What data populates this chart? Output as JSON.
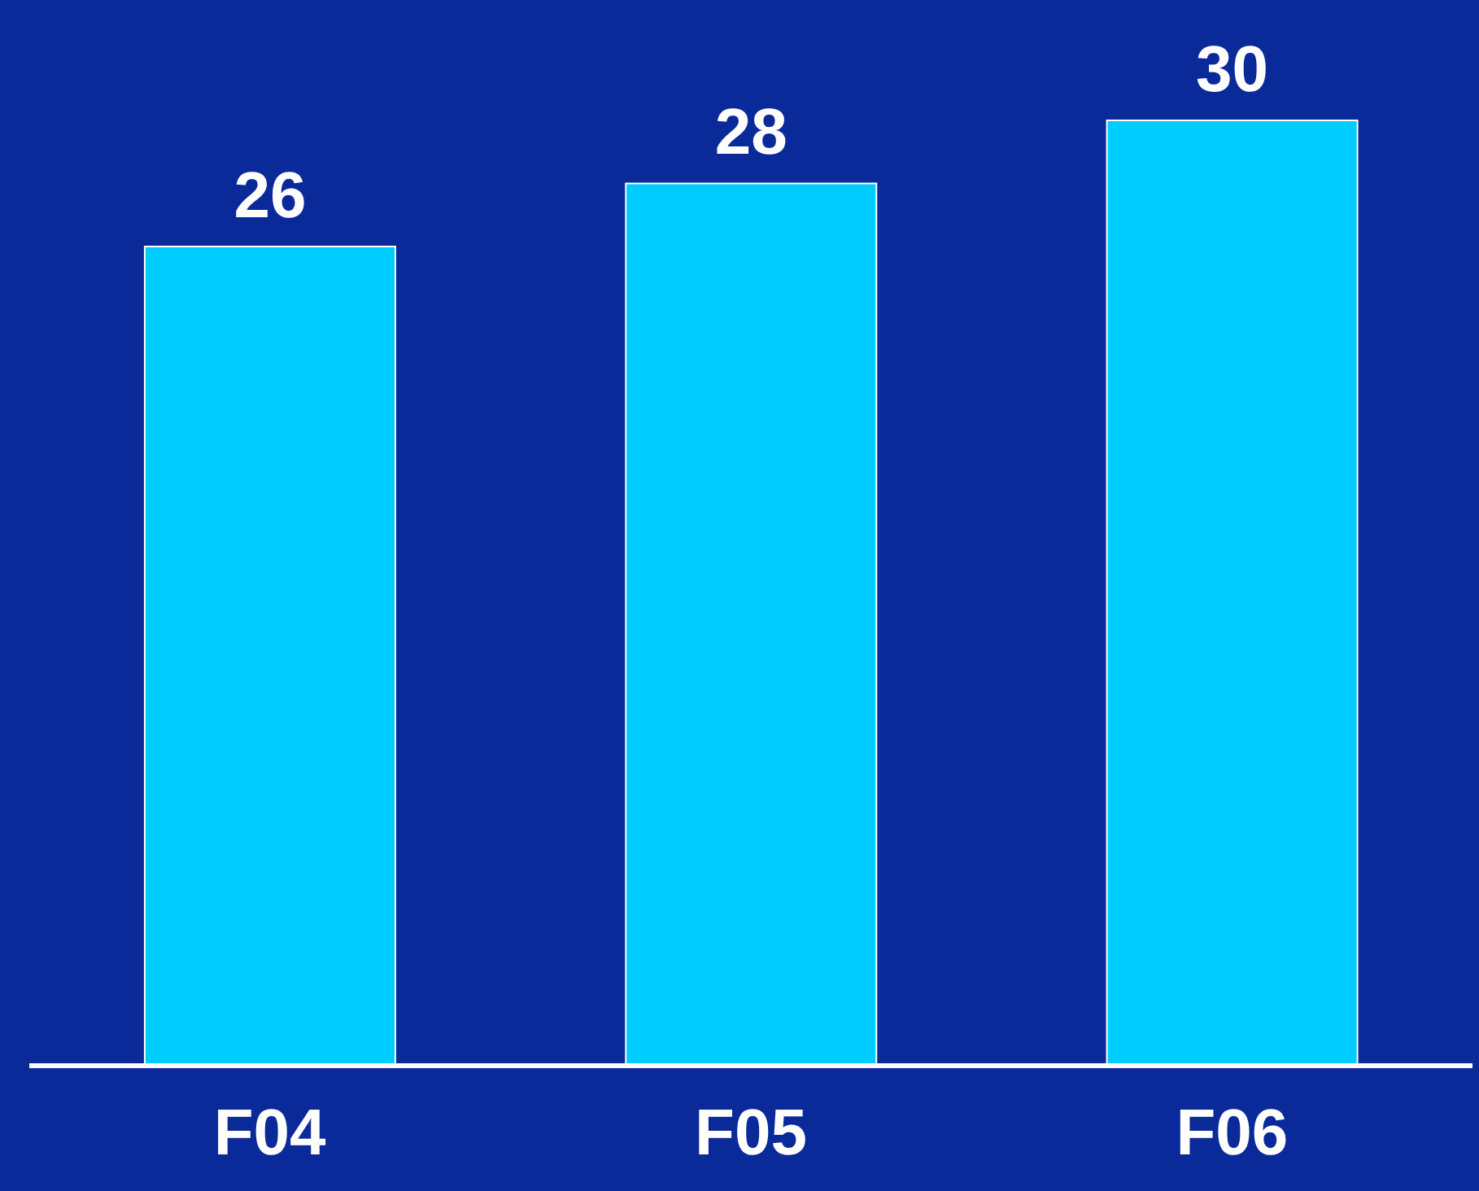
{
  "chart_data": {
    "type": "bar",
    "categories": [
      "F04",
      "F05",
      "F06"
    ],
    "values": [
      26,
      28,
      30
    ],
    "color": "#00ccff",
    "data_labels": true
  }
}
